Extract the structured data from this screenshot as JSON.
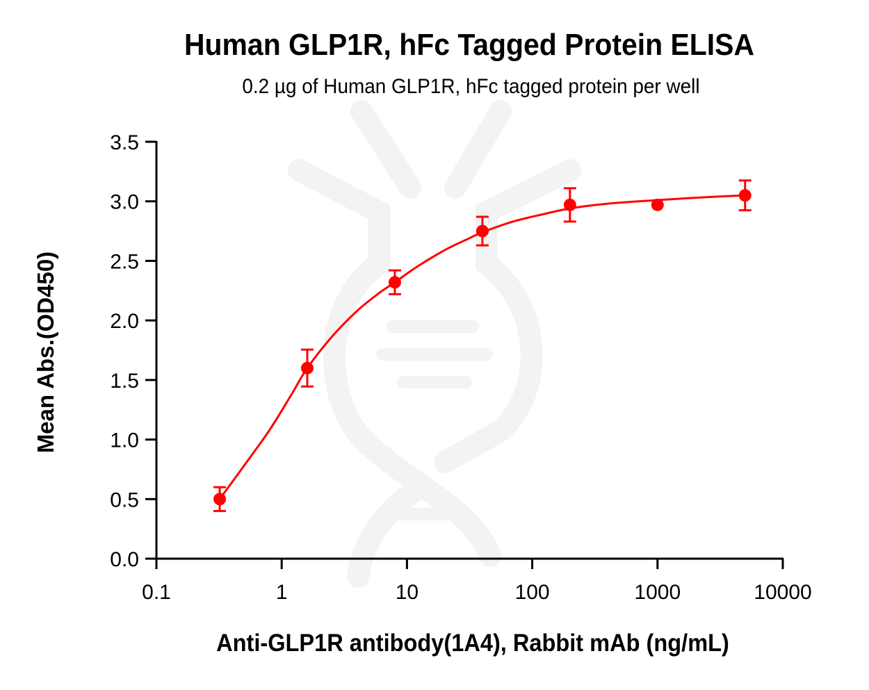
{
  "chart": {
    "title": "Human GLP1R, hFc Tagged Protein ELISA",
    "subtitle": "0.2 µg of Human GLP1R, hFc tagged protein per well",
    "xlabel": "Anti-GLP1R antibody(1A4), Rabbit mAb (ng/mL)",
    "ylabel": "Mean Abs.(OD450)",
    "series_color": "#ff0000",
    "watermark": "dna-logo"
  },
  "chart_data": {
    "type": "scatter",
    "title": "Human GLP1R, hFc Tagged Protein ELISA",
    "subtitle": "0.2 µg of Human GLP1R, hFc tagged protein per well",
    "xlabel": "Anti-GLP1R antibody(1A4), Rabbit mAb (ng/mL)",
    "ylabel": "Mean Abs.(OD450)",
    "xscale": "log",
    "xlim": [
      0.1,
      10000
    ],
    "ylim": [
      0,
      3.5
    ],
    "xticks": [
      "0.1",
      "1",
      "10",
      "100",
      "1000",
      "10000"
    ],
    "yticks": [
      "0.0",
      "0.5",
      "1.0",
      "1.5",
      "2.0",
      "2.5",
      "3.0",
      "3.5"
    ],
    "grid": false,
    "legend": null,
    "series": [
      {
        "name": "Anti-GLP1R antibody(1A4)",
        "x": [
          0.32,
          1.6,
          8,
          40,
          200,
          1000,
          5000
        ],
        "y": [
          0.5,
          1.6,
          2.32,
          2.75,
          2.97,
          2.97,
          3.05
        ],
        "error": [
          0.1,
          0.155,
          0.1,
          0.12,
          0.14,
          0.0,
          0.125
        ],
        "fit": "4PL sigmoidal curve",
        "fit_curve": {
          "x": [
            0.32,
            0.5,
            0.8,
            1.2,
            1.6,
            2.5,
            4,
            6,
            8,
            12,
            20,
            30,
            40,
            70,
            120,
            200,
            400,
            1000,
            2000,
            5000
          ],
          "y": [
            0.5,
            0.78,
            1.08,
            1.38,
            1.6,
            1.86,
            2.08,
            2.23,
            2.32,
            2.45,
            2.59,
            2.68,
            2.74,
            2.83,
            2.89,
            2.94,
            2.98,
            3.01,
            3.03,
            3.05
          ]
        }
      }
    ]
  }
}
